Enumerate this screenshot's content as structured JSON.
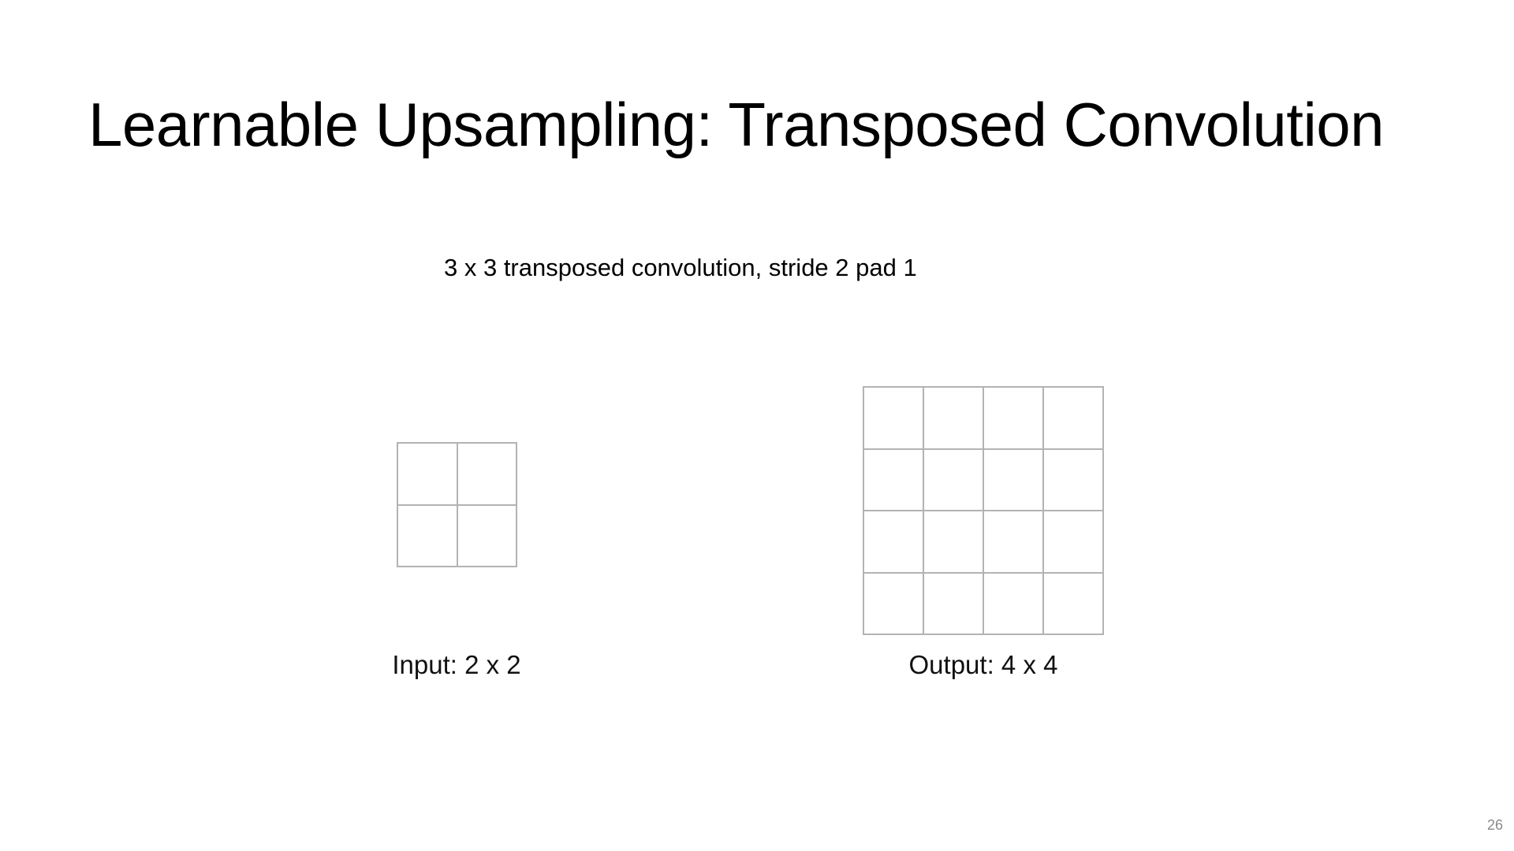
{
  "slide": {
    "title": "Learnable Upsampling: Transposed Convolution",
    "subtitle": "3 x 3 transposed convolution, stride 2 pad 1",
    "page_number": "26"
  },
  "diagram": {
    "input": {
      "label": "Input: 2 x 2",
      "rows": 2,
      "cols": 2
    },
    "output": {
      "label": "Output: 4 x 4",
      "rows": 4,
      "cols": 4
    },
    "grid_line_color": "#b3b3b3"
  }
}
